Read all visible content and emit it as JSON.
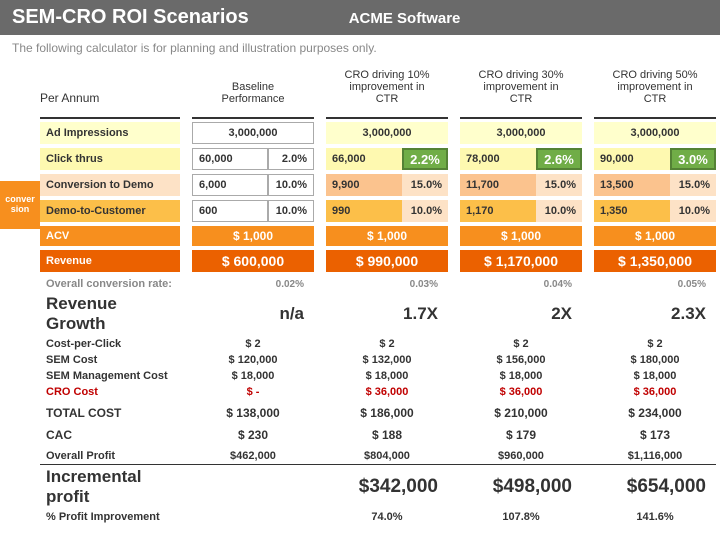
{
  "header": {
    "title": "SEM-CRO ROI Scenarios",
    "company": "ACME Software"
  },
  "subtitle": "The following calculator is for planning and illustration purposes only.",
  "side_tab": "conver\nsion",
  "columns": {
    "row_header": "Per Annum",
    "scenarios": [
      "Baseline\nPerformance",
      "CRO driving 10%\nimprovement in\nCTR",
      "CRO driving 30%\nimprovement in\nCTR",
      "CRO driving 50%\nimprovement in\nCTR"
    ]
  },
  "rows": {
    "ad_impressions": {
      "label": "Ad Impressions",
      "label_bg": "#ffffcc",
      "cells": [
        {
          "val": "3,000,000",
          "val_bordered": true
        },
        {
          "val": "3,000,000",
          "bg": "#ffffcc"
        },
        {
          "val": "3,000,000",
          "bg": "#ffffcc"
        },
        {
          "val": "3,000,000",
          "bg": "#ffffcc"
        }
      ]
    },
    "click_thrus": {
      "label": "Click thrus",
      "label_bg": "#fef9b0",
      "cells": [
        {
          "val": "60,000",
          "val_bordered": true,
          "pct": "2.0%",
          "pct_bordered": true
        },
        {
          "val": "66,000",
          "bg": "#fef9b0",
          "pct": "2.2%",
          "pct_hl": true
        },
        {
          "val": "78,000",
          "bg": "#fef9b0",
          "pct": "2.6%",
          "pct_hl": true
        },
        {
          "val": "90,000",
          "bg": "#fef9b0",
          "pct": "3.0%",
          "pct_hl": true
        }
      ]
    },
    "conv_demo": {
      "label": "Conversion to Demo",
      "label_bg": "#fde2c6",
      "cells": [
        {
          "val": "6,000",
          "val_bordered": true,
          "pct": "10.0%",
          "pct_bordered": true
        },
        {
          "val": "9,900",
          "bg": "#fbc38e",
          "pct": "15.0%",
          "pct_bg": "#fde2c6"
        },
        {
          "val": "11,700",
          "bg": "#fbc38e",
          "pct": "15.0%",
          "pct_bg": "#fde2c6"
        },
        {
          "val": "13,500",
          "bg": "#fbc38e",
          "pct": "15.0%",
          "pct_bg": "#fde2c6"
        }
      ]
    },
    "demo_cust": {
      "label": "Demo-to-Customer",
      "label_bg": "#fcbf49",
      "cells": [
        {
          "val": "600",
          "val_bordered": true,
          "pct": "10.0%",
          "pct_bordered": true
        },
        {
          "val": "990",
          "bg": "#fcbf49",
          "pct": "10.0%",
          "pct_bg": "#fde2c6"
        },
        {
          "val": "1,170",
          "bg": "#fcbf49",
          "pct": "10.0%",
          "pct_bg": "#fde2c6"
        },
        {
          "val": "1,350",
          "bg": "#fcbf49",
          "pct": "10.0%",
          "pct_bg": "#fde2c6"
        }
      ]
    },
    "acv": {
      "label": "ACV",
      "label_bg": "#f78f1e",
      "cell_bg": "#f78f1e",
      "values": [
        "$ 1,000",
        "$ 1,000",
        "$ 1,000",
        "$ 1,000"
      ]
    },
    "revenue": {
      "label": "Revenue",
      "label_bg": "#eb6100",
      "cell_bg": "#eb6100",
      "values": [
        "$ 600,000",
        "$ 990,000",
        "$ 1,170,000",
        "$ 1,350,000"
      ]
    }
  },
  "metrics": {
    "ocr": {
      "label": "Overall conversion rate:",
      "values": [
        "0.02%",
        "0.03%",
        "0.04%",
        "0.05%"
      ]
    },
    "growth": {
      "label": "Revenue Growth",
      "values": [
        "n/a",
        "1.7X",
        "2X",
        "2.3X"
      ]
    },
    "cpc": {
      "label": "Cost-per-Click",
      "values": [
        "$ 2",
        "$ 2",
        "$ 2",
        "$ 2"
      ]
    },
    "sem": {
      "label": "SEM Cost",
      "values": [
        "$ 120,000",
        "$ 132,000",
        "$ 156,000",
        "$ 180,000"
      ]
    },
    "semmgmt": {
      "label": "SEM Management Cost",
      "values": [
        "$ 18,000",
        "$ 18,000",
        "$ 18,000",
        "$ 18,000"
      ]
    },
    "cro": {
      "label": "CRO Cost",
      "values": [
        "$ -",
        "$ 36,000",
        "$ 36,000",
        "$ 36,000"
      ]
    },
    "total": {
      "label": "TOTAL COST",
      "values": [
        "$ 138,000",
        "$ 186,000",
        "$ 210,000",
        "$ 234,000"
      ]
    },
    "cac": {
      "label": "CAC",
      "values": [
        "$ 230",
        "$ 188",
        "$ 179",
        "$ 173"
      ]
    },
    "oprofit": {
      "label": "Overall Profit",
      "values": [
        "$462,000",
        "$804,000",
        "$960,000",
        "$1,116,000"
      ]
    },
    "incprofit": {
      "label": "Incremental profit",
      "values": [
        "",
        "$342,000",
        "$498,000",
        "$654,000"
      ]
    },
    "pctimp": {
      "label": "% Profit Improvement",
      "values": [
        "",
        "74.0%",
        "107.8%",
        "141.6%"
      ]
    }
  }
}
